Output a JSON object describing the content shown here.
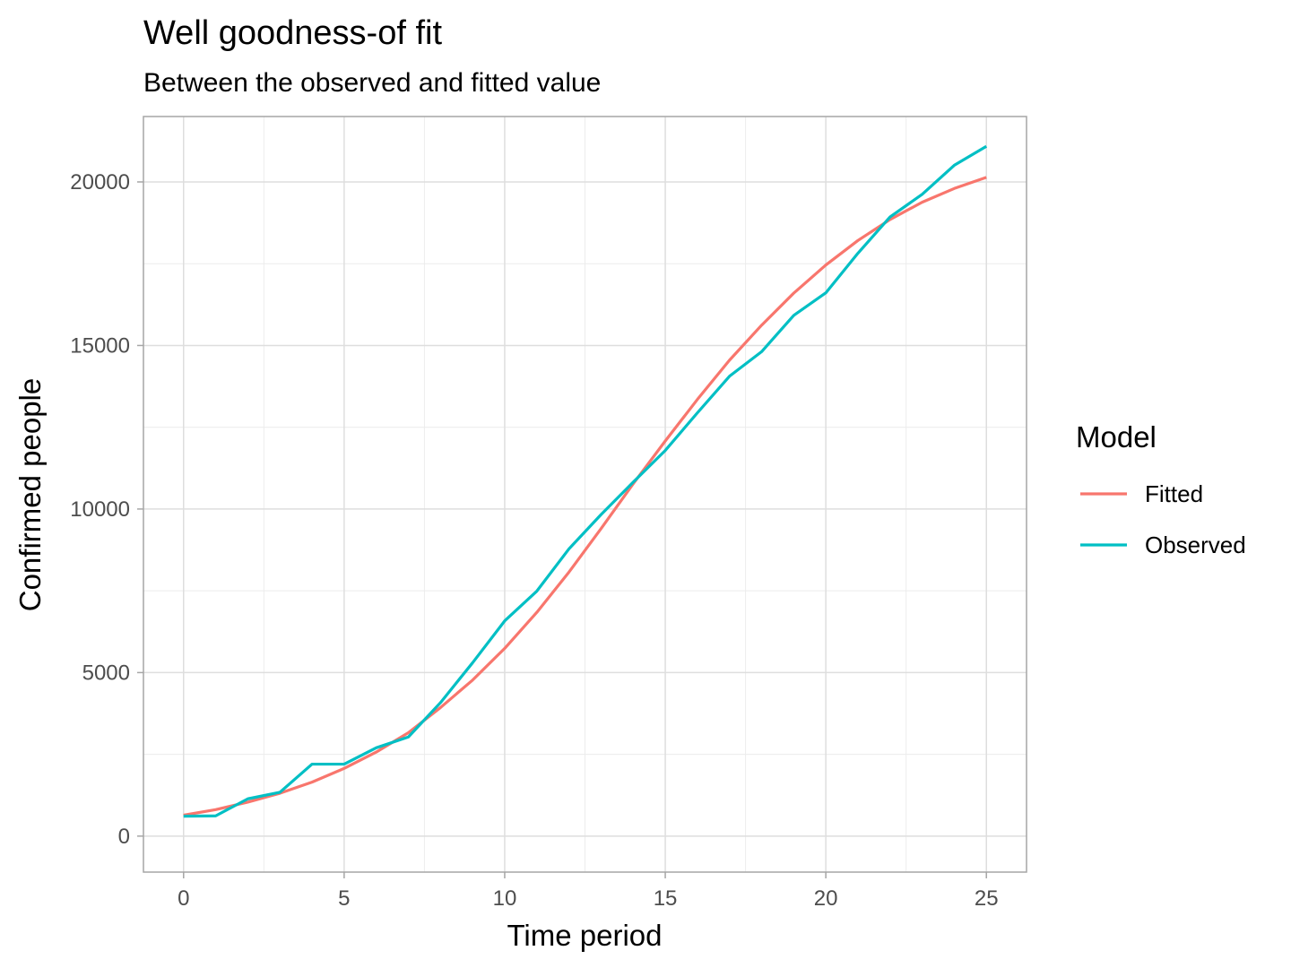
{
  "chart_data": {
    "type": "line",
    "title": "Well goodness-of fit",
    "subtitle": "Between the observed and fitted value",
    "xlabel": "Time period",
    "ylabel": "Confirmed people",
    "xlim": [
      -1.25,
      26.25
    ],
    "ylim": [
      -1100,
      22000
    ],
    "x_ticks": [
      0,
      5,
      10,
      15,
      20,
      25
    ],
    "y_ticks": [
      0,
      5000,
      10000,
      15000,
      20000
    ],
    "x_tick_labels": [
      "0",
      "5",
      "10",
      "15",
      "20",
      "25"
    ],
    "y_tick_labels": [
      "0",
      "5000",
      "10000",
      "15000",
      "20000"
    ],
    "grid": true,
    "legend": {
      "title": "Model",
      "placement": "right"
    },
    "x": [
      0,
      1,
      2,
      3,
      4,
      5,
      6,
      7,
      8,
      9,
      10,
      11,
      12,
      13,
      14,
      15,
      16,
      17,
      18,
      19,
      20,
      21,
      22,
      23,
      24,
      25
    ],
    "series": [
      {
        "name": "Fitted",
        "color": "#f8766d",
        "values": [
          640,
          810,
          1040,
          1310,
          1650,
          2070,
          2570,
          3160,
          3930,
          4770,
          5740,
          6840,
          8070,
          9400,
          10770,
          12080,
          13350,
          14550,
          15620,
          16600,
          17460,
          18210,
          18850,
          19380,
          19800,
          20140
        ]
      },
      {
        "name": "Observed",
        "color": "#00bfc4",
        "values": [
          610,
          620,
          1140,
          1340,
          2200,
          2200,
          2700,
          3030,
          4080,
          5300,
          6580,
          7490,
          8780,
          9830,
          10820,
          11790,
          12940,
          14060,
          14810,
          15920,
          16610,
          17820,
          18930,
          19620,
          20510,
          21090
        ]
      }
    ]
  }
}
